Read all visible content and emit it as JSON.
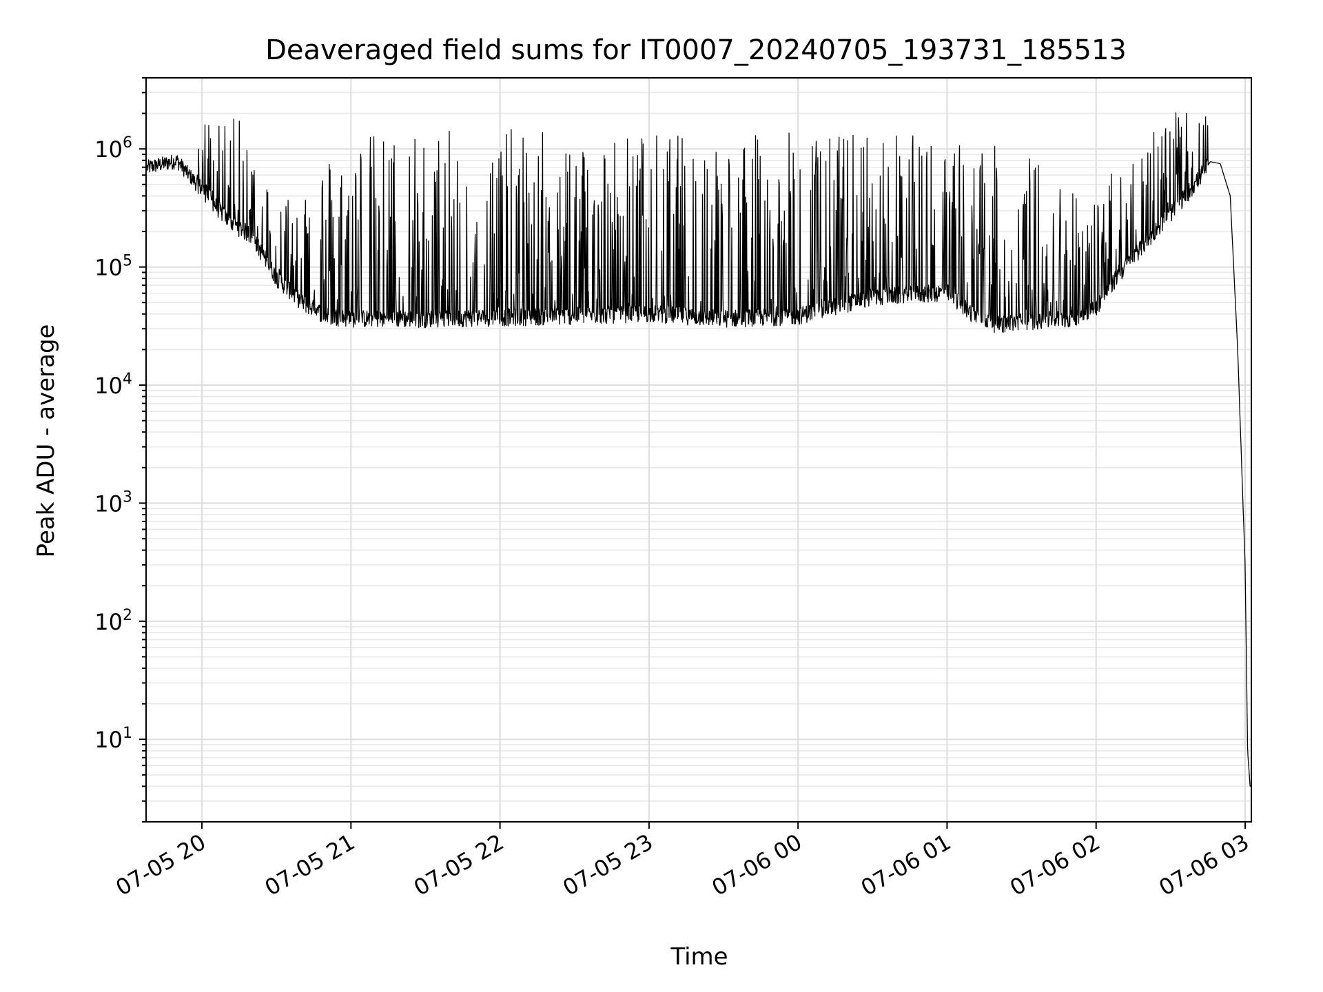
{
  "chart_data": {
    "type": "line",
    "title": "Deaveraged field sums for IT0007_20240705_193731_185513",
    "xlabel": "Time",
    "ylabel": "Peak ADU - average",
    "x_axis_type": "datetime",
    "xlim": [
      "2024-07-05 19:37:31",
      "2024-07-06 03:02:30"
    ],
    "x_ticks": [
      "07-05 20",
      "07-05 21",
      "07-05 22",
      "07-05 23",
      "07-06 00",
      "07-06 01",
      "07-06 02",
      "07-06 03"
    ],
    "y_scale": "log",
    "ylim": [
      2,
      4000000
    ],
    "y_tick_exponents": [
      1,
      2,
      3,
      4,
      5,
      6
    ],
    "y_tick_base": "10",
    "grid": true,
    "line_color": "#000000",
    "series": [
      {
        "description": "baseline (lower envelope) of peak ADU - average",
        "x": [
          "2024-07-05 19:38",
          "2024-07-05 19:50",
          "2024-07-05 20:00",
          "2024-07-05 20:10",
          "2024-07-05 20:20",
          "2024-07-05 20:30",
          "2024-07-05 20:40",
          "2024-07-05 20:50",
          "2024-07-05 21:00",
          "2024-07-05 21:30",
          "2024-07-05 22:00",
          "2024-07-05 22:30",
          "2024-07-05 23:00",
          "2024-07-05 23:30",
          "2024-07-06 00:00",
          "2024-07-06 00:30",
          "2024-07-06 01:00",
          "2024-07-06 01:10",
          "2024-07-06 01:20",
          "2024-07-06 01:30",
          "2024-07-06 01:40",
          "2024-07-06 01:50",
          "2024-07-06 02:00",
          "2024-07-06 02:10",
          "2024-07-06 02:20",
          "2024-07-06 02:30",
          "2024-07-06 02:40",
          "2024-07-06 02:46",
          "2024-07-06 02:50",
          "2024-07-06 02:54",
          "2024-07-06 02:57",
          "2024-07-06 02:59",
          "2024-07-06 03:00",
          "2024-07-06 03:01",
          "2024-07-06 03:02"
        ],
        "values": [
          700000,
          800000,
          450000,
          250000,
          180000,
          80000,
          50000,
          38000,
          36000,
          36000,
          37000,
          38000,
          40000,
          36000,
          38000,
          55000,
          60000,
          40000,
          32000,
          34000,
          35000,
          36000,
          45000,
          90000,
          160000,
          280000,
          500000,
          780000,
          750000,
          400000,
          20000,
          1200,
          300,
          8,
          4
        ]
      },
      {
        "description": "upper envelope of spikes",
        "x": [
          "2024-07-05 20:05",
          "2024-07-05 20:15",
          "2024-07-05 20:30",
          "2024-07-05 21:00",
          "2024-07-05 21:30",
          "2024-07-05 22:00",
          "2024-07-05 22:30",
          "2024-07-05 23:00",
          "2024-07-05 23:30",
          "2024-07-06 00:00",
          "2024-07-06 00:30",
          "2024-07-06 01:00",
          "2024-07-06 01:30",
          "2024-07-06 02:00",
          "2024-07-06 02:20",
          "2024-07-06 02:35"
        ],
        "values": [
          1900000,
          1800000,
          400000,
          1400000,
          1400000,
          1500000,
          1400000,
          1400000,
          1300000,
          1400000,
          1500000,
          1200000,
          1000000,
          400000,
          1800000,
          2100000
        ]
      }
    ]
  }
}
